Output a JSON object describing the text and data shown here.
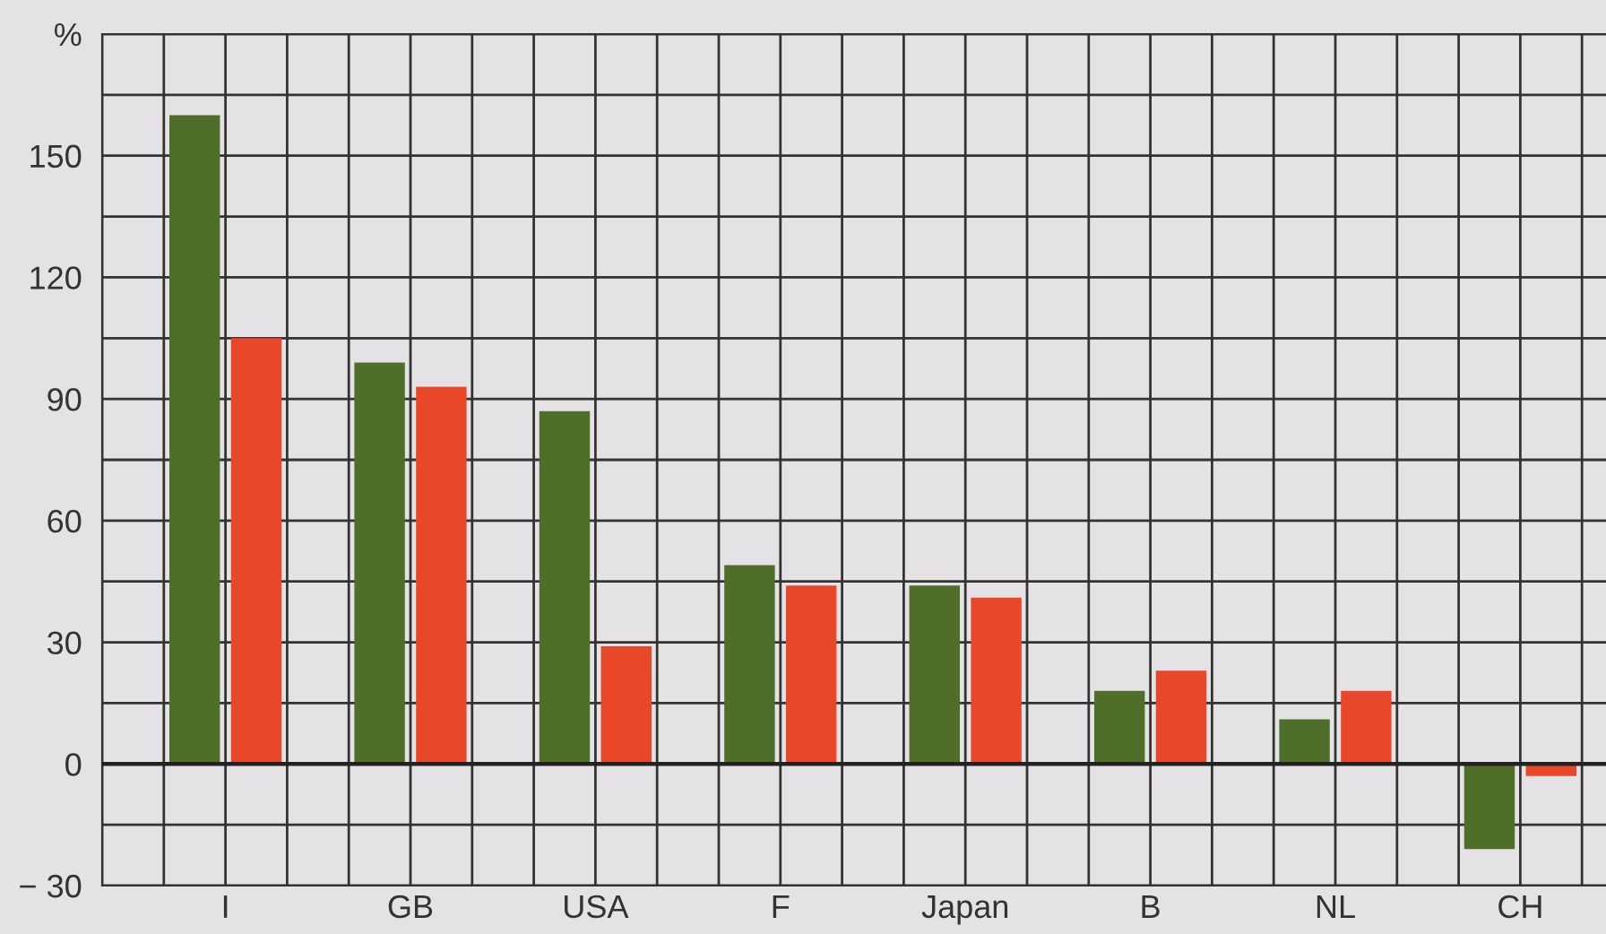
{
  "chart_data": {
    "type": "bar",
    "categories": [
      "I",
      "GB",
      "USA",
      "F",
      "Japan",
      "B",
      "NL",
      "CH"
    ],
    "series": [
      {
        "color": "#4e6e2a",
        "values": [
          160,
          99,
          87,
          49,
          44,
          18,
          11,
          -21
        ]
      },
      {
        "color": "#e8472a",
        "values": [
          105,
          93,
          29,
          44,
          41,
          23,
          18,
          -3
        ]
      }
    ],
    "ylim": [
      -30,
      180
    ],
    "yticks": [
      {
        "value": -30,
        "label": "− 30"
      },
      0,
      30,
      60,
      90,
      120,
      150,
      {
        "value": 180,
        "label": "%"
      }
    ],
    "grid": true,
    "legend": false
  }
}
